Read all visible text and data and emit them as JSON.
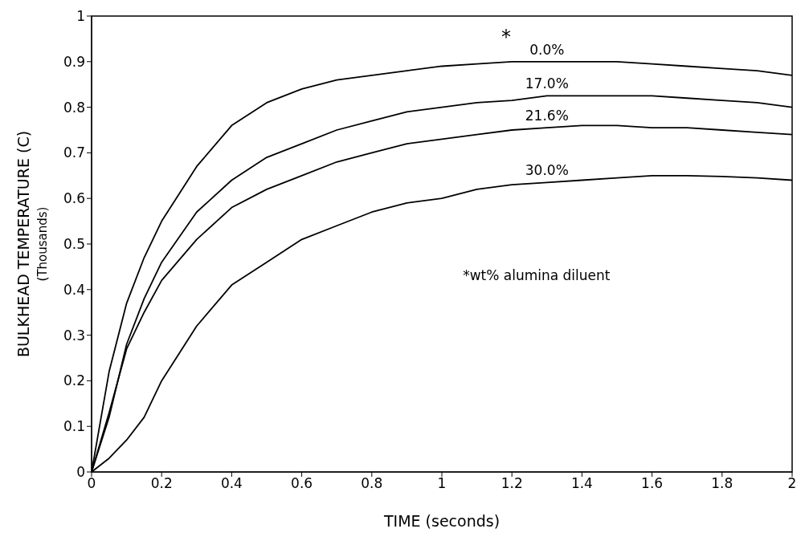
{
  "chart_data": {
    "type": "line",
    "xlabel": "TIME (seconds)",
    "ylabel": "BULKHEAD TEMPERATURE (C)\n(Thousands)",
    "x": [
      0,
      0.05,
      0.1,
      0.15,
      0.2,
      0.3,
      0.4,
      0.5,
      0.6,
      0.7,
      0.8,
      0.9,
      1.0,
      1.1,
      1.2,
      1.3,
      1.4,
      1.5,
      1.6,
      1.7,
      1.8,
      1.9,
      2.0
    ],
    "series": [
      {
        "name": "0.0%",
        "color": "#000000",
        "values": [
          0,
          0.22,
          0.37,
          0.47,
          0.55,
          0.67,
          0.76,
          0.81,
          0.84,
          0.86,
          0.87,
          0.88,
          0.89,
          0.895,
          0.9,
          0.9,
          0.9,
          0.9,
          0.895,
          0.89,
          0.885,
          0.88,
          0.87
        ]
      },
      {
        "name": "17.0%",
        "color": "#000000",
        "values": [
          0,
          0.12,
          0.28,
          0.38,
          0.46,
          0.57,
          0.64,
          0.69,
          0.72,
          0.75,
          0.77,
          0.79,
          0.8,
          0.81,
          0.815,
          0.825,
          0.825,
          0.825,
          0.825,
          0.82,
          0.815,
          0.81,
          0.8
        ]
      },
      {
        "name": "21.6%",
        "color": "#000000",
        "values": [
          0,
          0.13,
          0.27,
          0.35,
          0.42,
          0.51,
          0.58,
          0.62,
          0.65,
          0.68,
          0.7,
          0.72,
          0.73,
          0.74,
          0.75,
          0.755,
          0.76,
          0.76,
          0.755,
          0.755,
          0.75,
          0.745,
          0.74
        ]
      },
      {
        "name": "30.0%",
        "color": "#000000",
        "values": [
          0,
          0.03,
          0.07,
          0.12,
          0.2,
          0.32,
          0.41,
          0.46,
          0.51,
          0.54,
          0.57,
          0.59,
          0.6,
          0.62,
          0.63,
          0.635,
          0.64,
          0.645,
          0.65,
          0.65,
          0.648,
          0.645,
          0.64
        ]
      }
    ],
    "xlim": [
      0,
      2
    ],
    "xticks": [
      0,
      0.2,
      0.4,
      0.6,
      0.8,
      1,
      1.2,
      1.4,
      1.6,
      1.8,
      2
    ],
    "ylim": [
      0,
      1
    ],
    "yticks": [
      0,
      0.1,
      0.2,
      0.3,
      0.4,
      0.5,
      0.6,
      0.7,
      0.8,
      0.9,
      1
    ],
    "annotations": [
      "*",
      "*wt% alumina diluent"
    ],
    "grid": false,
    "legend": false,
    "marker": "none",
    "line_style": "solid"
  }
}
